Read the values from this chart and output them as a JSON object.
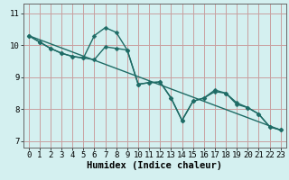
{
  "xlabel": "Humidex (Indice chaleur)",
  "background_color": "#d4f0f0",
  "grid_color": "#c8a0a0",
  "line_color": "#1e6b65",
  "xlim": [
    -0.5,
    23.5
  ],
  "ylim": [
    6.8,
    11.3
  ],
  "yticks": [
    7,
    8,
    9,
    10,
    11
  ],
  "xticks": [
    0,
    1,
    2,
    3,
    4,
    5,
    6,
    7,
    8,
    9,
    10,
    11,
    12,
    13,
    14,
    15,
    16,
    17,
    18,
    19,
    20,
    21,
    22,
    23
  ],
  "line1_x": [
    0,
    1,
    2,
    3,
    4,
    5,
    6,
    7,
    8,
    9,
    10,
    11,
    12,
    13,
    14,
    15,
    16,
    17,
    18,
    19,
    20,
    21,
    22,
    23
  ],
  "line1_y": [
    10.3,
    10.1,
    9.9,
    9.75,
    9.65,
    9.6,
    10.3,
    10.55,
    10.4,
    9.85,
    8.78,
    8.83,
    8.85,
    8.35,
    7.65,
    8.25,
    8.35,
    8.6,
    8.5,
    8.15,
    8.05,
    7.85,
    7.45,
    7.35
  ],
  "line2_x": [
    0,
    1,
    2,
    3,
    4,
    5,
    6,
    7,
    8,
    9,
    10,
    11,
    12,
    13,
    14,
    15,
    16,
    17,
    18,
    19,
    20,
    21,
    22,
    23
  ],
  "line2_y": [
    10.3,
    10.1,
    9.9,
    9.75,
    9.65,
    9.6,
    9.55,
    9.95,
    9.9,
    9.85,
    8.78,
    8.83,
    8.85,
    8.35,
    7.65,
    8.25,
    8.35,
    8.55,
    8.5,
    8.2,
    8.05,
    7.85,
    7.45,
    7.35
  ],
  "line3_x": [
    0,
    23
  ],
  "line3_y": [
    10.3,
    7.35
  ],
  "marker_size": 2.5,
  "line_width": 1.0,
  "xlabel_fontsize": 7.5,
  "tick_fontsize": 6.5
}
